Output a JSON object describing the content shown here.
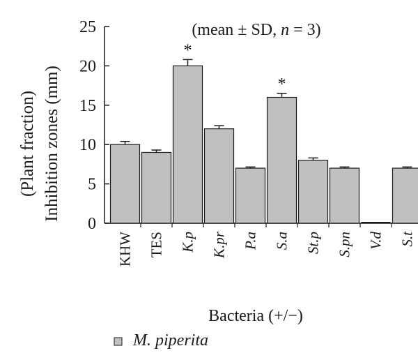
{
  "chart_data": {
    "type": "bar",
    "title": "(mean ± SD, n = 3)",
    "ylabel_line1": "(Plant fraction)",
    "ylabel_line2": "Inhibition zones (mm)",
    "xlabel": "Bacteria (+/−)",
    "ylim": [
      0,
      25
    ],
    "yticks": [
      "0",
      "5",
      "10",
      "15",
      "20",
      "25"
    ],
    "categories": [
      "KHW",
      "TES",
      "K.p",
      "K.pr",
      "P.a",
      "S.a",
      "St.p",
      "S.pn",
      "V.d",
      "S.t"
    ],
    "italic_categories": [
      false,
      false,
      true,
      true,
      true,
      true,
      true,
      true,
      true,
      true
    ],
    "series": [
      {
        "name": "M. piperita",
        "values": [
          10,
          9,
          20,
          12,
          7,
          16,
          8,
          7,
          0,
          7
        ],
        "errors": [
          0.4,
          0.3,
          0.8,
          0.4,
          0.15,
          0.5,
          0.3,
          0.15,
          0,
          0.15
        ],
        "significance": [
          "",
          "",
          "*",
          "",
          "",
          "*",
          "",
          "",
          "",
          ""
        ]
      }
    ],
    "bar_color": "#c0c0c0",
    "grid": false,
    "legend_position": "bottom-left"
  }
}
